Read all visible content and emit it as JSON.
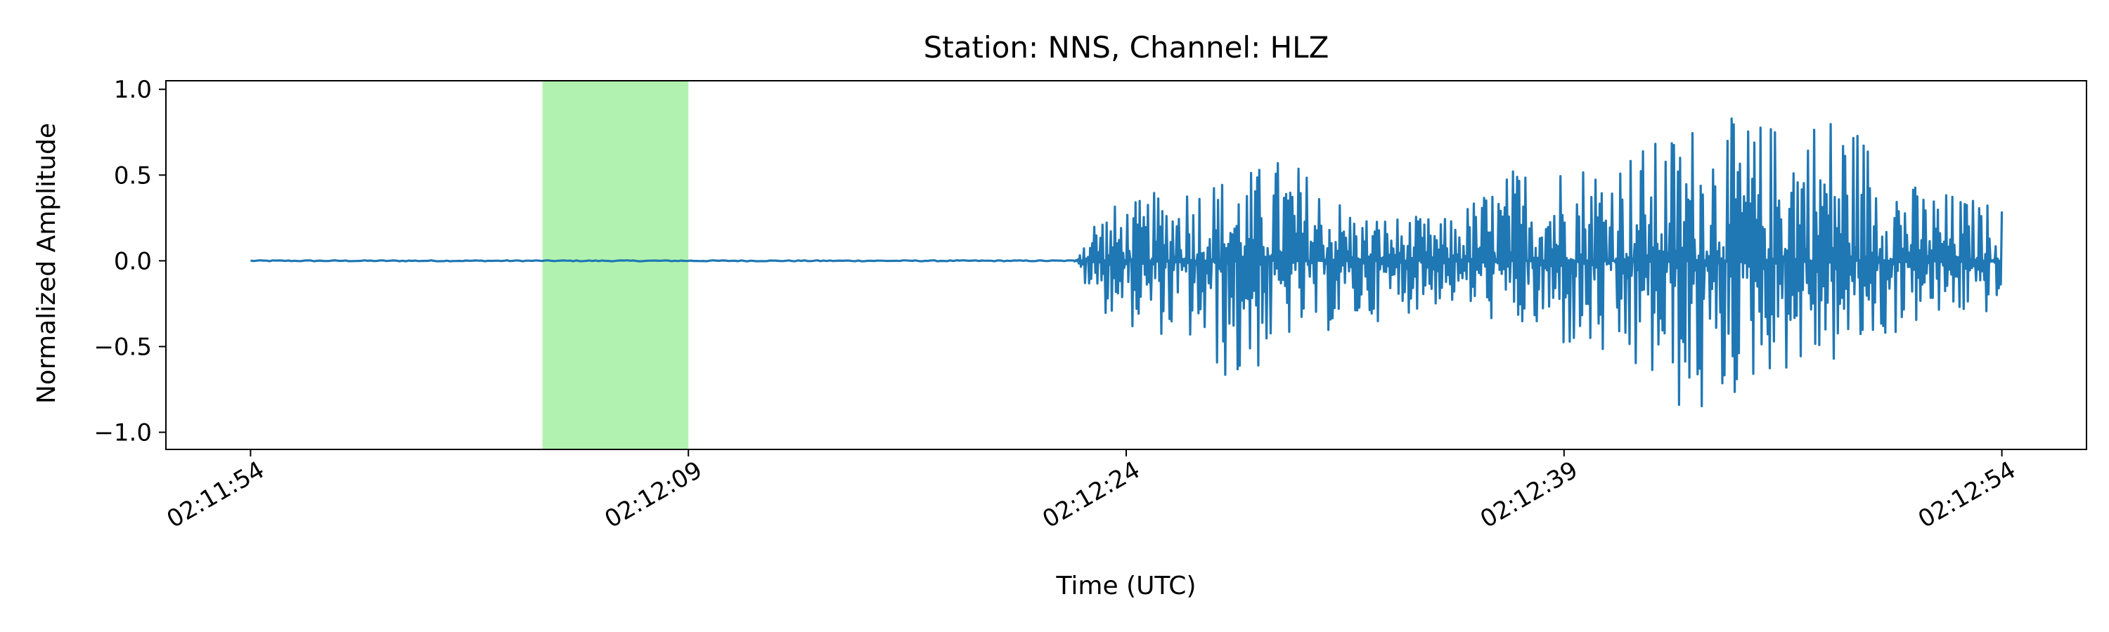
{
  "chart_data": {
    "type": "line",
    "title": "Station: NNS, Channel: HLZ",
    "xlabel": "Time (UTC)",
    "ylabel": "Normalized Amplitude",
    "x_range_seconds_of_day": [
      7914,
      7974
    ],
    "xlim_seconds_of_day": [
      7911.1,
      7976.9
    ],
    "ylim": [
      -1.1,
      1.05
    ],
    "x_ticks": [
      {
        "t": 7914,
        "label": "02:11:54"
      },
      {
        "t": 7929,
        "label": "02:12:09"
      },
      {
        "t": 7944,
        "label": "02:12:24"
      },
      {
        "t": 7959,
        "label": "02:12:39"
      },
      {
        "t": 7974,
        "label": "02:12:54"
      }
    ],
    "y_ticks": [
      {
        "v": 1.0,
        "label": "1.0"
      },
      {
        "v": 0.5,
        "label": "0.5"
      },
      {
        "v": 0.0,
        "label": "0.0"
      },
      {
        "v": -0.5,
        "label": "−0.5"
      },
      {
        "v": -1.0,
        "label": "−1.0"
      }
    ],
    "highlight_span_seconds_of_day": [
      7924,
      7929
    ],
    "colors": {
      "trace": "#1f77b4",
      "highlight": "#b2f2b0"
    },
    "grid": false,
    "series": [
      {
        "signal_onset_seconds_of_day": 7942.2,
        "envelope_keypoints": [
          {
            "t": 7942.2,
            "max": 0.03,
            "min": -0.03
          },
          {
            "t": 7943.0,
            "max": 0.31,
            "min": -0.28
          },
          {
            "t": 7944.5,
            "max": 0.36,
            "min": -0.42
          },
          {
            "t": 7946.0,
            "max": 0.49,
            "min": -0.46
          },
          {
            "t": 7947.8,
            "max": 0.51,
            "min": -0.78
          },
          {
            "t": 7949.5,
            "max": 0.63,
            "min": -0.47
          },
          {
            "t": 7952.0,
            "max": 0.28,
            "min": -0.38
          },
          {
            "t": 7955.0,
            "max": 0.25,
            "min": -0.25
          },
          {
            "t": 7957.5,
            "max": 0.58,
            "min": -0.42
          },
          {
            "t": 7960.0,
            "max": 0.62,
            "min": -0.6
          },
          {
            "t": 7962.2,
            "max": 0.71,
            "min": -0.77
          },
          {
            "t": 7963.5,
            "max": 0.85,
            "min": -1.0
          },
          {
            "t": 7966.0,
            "max": 0.82,
            "min": -0.66
          },
          {
            "t": 7968.5,
            "max": 0.92,
            "min": -0.62
          },
          {
            "t": 7971.0,
            "max": 0.45,
            "min": -0.38
          },
          {
            "t": 7974.0,
            "max": 0.33,
            "min": -0.3
          }
        ]
      }
    ]
  }
}
